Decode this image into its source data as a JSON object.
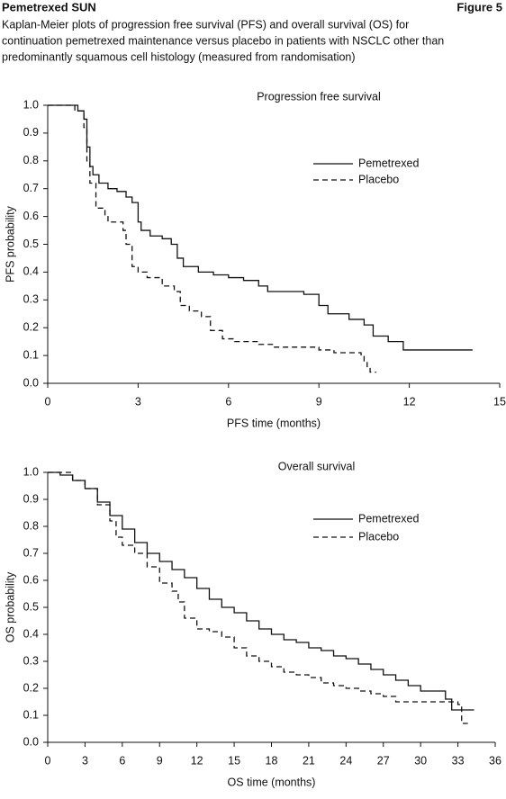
{
  "header": {
    "title": "Pemetrexed SUN",
    "figure": "Figure 5",
    "caption": [
      "Kaplan-Meier plots of progression free survival (PFS) and overall survival (OS) for",
      "continuation pemetrexed maintenance versus placebo in patients with NSCLC other than",
      "predominantly squamous cell histology (measured from randomisation)"
    ]
  },
  "chart_data": [
    {
      "type": "step",
      "title": "Progression free survival",
      "x_label": "PFS time (months)",
      "y_label": "PFS probability",
      "xlim": [
        0,
        15
      ],
      "ylim": [
        0,
        1
      ],
      "xticks": [
        0,
        3,
        6,
        9,
        12,
        15
      ],
      "yticks": [
        {
          "value": 0,
          "label": "0.0"
        },
        0.1,
        0.2,
        0.3,
        0.4,
        0.5,
        0.6,
        0.7,
        0.8,
        0.9,
        {
          "value": 1,
          "label": "1.0"
        }
      ],
      "legend": "upper right",
      "series": [
        {
          "name": "Pemetrexed",
          "color": "#111111",
          "linestyle": "solid",
          "x": [
            0,
            0.8,
            1.0,
            1.2,
            1.3,
            1.4,
            1.5,
            1.7,
            2.0,
            2.3,
            2.6,
            2.8,
            3.0,
            3.1,
            3.4,
            3.8,
            4.1,
            4.3,
            4.5,
            5.0,
            5.5,
            6.0,
            6.5,
            7.0,
            7.3,
            8.5,
            9.0,
            9.3,
            10.0,
            10.5,
            10.8,
            11.3,
            11.8,
            14.1
          ],
          "values": [
            1.0,
            1.0,
            0.98,
            0.95,
            0.85,
            0.78,
            0.75,
            0.72,
            0.7,
            0.69,
            0.67,
            0.65,
            0.58,
            0.55,
            0.53,
            0.52,
            0.5,
            0.45,
            0.42,
            0.4,
            0.39,
            0.38,
            0.37,
            0.35,
            0.33,
            0.32,
            0.28,
            0.25,
            0.23,
            0.21,
            0.17,
            0.15,
            0.12,
            0.12
          ]
        },
        {
          "name": "Placebo",
          "color": "#111111",
          "linestyle": "dashed",
          "x": [
            0,
            0.9,
            1.2,
            1.3,
            1.4,
            1.6,
            1.9,
            2.0,
            2.5,
            2.6,
            2.8,
            3.0,
            3.3,
            3.8,
            4.2,
            4.4,
            4.7,
            5.1,
            5.4,
            5.8,
            6.2,
            7.0,
            7.5,
            9.0,
            9.5,
            10.4,
            10.5,
            10.6,
            10.7,
            10.9
          ],
          "values": [
            1.0,
            0.98,
            0.92,
            0.8,
            0.72,
            0.63,
            0.6,
            0.58,
            0.55,
            0.5,
            0.42,
            0.4,
            0.38,
            0.35,
            0.33,
            0.28,
            0.26,
            0.24,
            0.19,
            0.16,
            0.15,
            0.14,
            0.13,
            0.12,
            0.11,
            0.1,
            0.08,
            0.06,
            0.04,
            0.04
          ]
        }
      ]
    },
    {
      "type": "step",
      "title": "Overall survival",
      "x_label": "OS time (months)",
      "y_label": "OS probability",
      "xlim": [
        0,
        36
      ],
      "ylim": [
        0,
        1
      ],
      "xticks": [
        0,
        3,
        6,
        9,
        12,
        15,
        18,
        21,
        24,
        27,
        30,
        33,
        36
      ],
      "yticks": [
        {
          "value": 0,
          "label": "0.0"
        },
        0.1,
        0.2,
        0.3,
        0.4,
        0.5,
        0.6,
        0.7,
        0.8,
        0.9,
        {
          "value": 1,
          "label": "1.0"
        }
      ],
      "legend": "upper right",
      "series": [
        {
          "name": "Pemetrexed",
          "color": "#111111",
          "linestyle": "solid",
          "x": [
            0,
            1,
            2,
            3,
            4,
            5,
            6,
            7,
            8,
            9,
            10,
            11,
            12,
            13,
            14,
            15,
            16,
            17,
            18,
            19,
            20,
            21,
            22,
            23,
            24,
            25,
            26,
            27,
            28,
            29,
            30,
            32,
            32.5,
            34.3
          ],
          "values": [
            1.0,
            0.99,
            0.97,
            0.94,
            0.89,
            0.84,
            0.79,
            0.74,
            0.7,
            0.67,
            0.64,
            0.61,
            0.57,
            0.53,
            0.5,
            0.48,
            0.45,
            0.42,
            0.4,
            0.38,
            0.37,
            0.35,
            0.34,
            0.32,
            0.31,
            0.29,
            0.27,
            0.25,
            0.23,
            0.21,
            0.19,
            0.16,
            0.12,
            0.12
          ]
        },
        {
          "name": "Placebo",
          "color": "#111111",
          "linestyle": "dashed",
          "x": [
            0,
            2,
            3,
            4,
            5,
            5.5,
            6,
            7,
            8,
            9,
            10,
            10.5,
            11,
            12,
            13,
            14,
            15,
            16,
            17,
            18,
            19,
            20,
            21,
            22,
            23,
            24,
            25,
            26,
            27,
            28,
            30,
            33,
            33.3,
            33.8
          ],
          "values": [
            1.0,
            0.97,
            0.94,
            0.88,
            0.82,
            0.76,
            0.73,
            0.7,
            0.65,
            0.59,
            0.56,
            0.52,
            0.46,
            0.42,
            0.41,
            0.39,
            0.35,
            0.32,
            0.3,
            0.28,
            0.26,
            0.25,
            0.24,
            0.22,
            0.21,
            0.2,
            0.19,
            0.18,
            0.17,
            0.15,
            0.15,
            0.14,
            0.07,
            0.07
          ]
        }
      ]
    }
  ]
}
